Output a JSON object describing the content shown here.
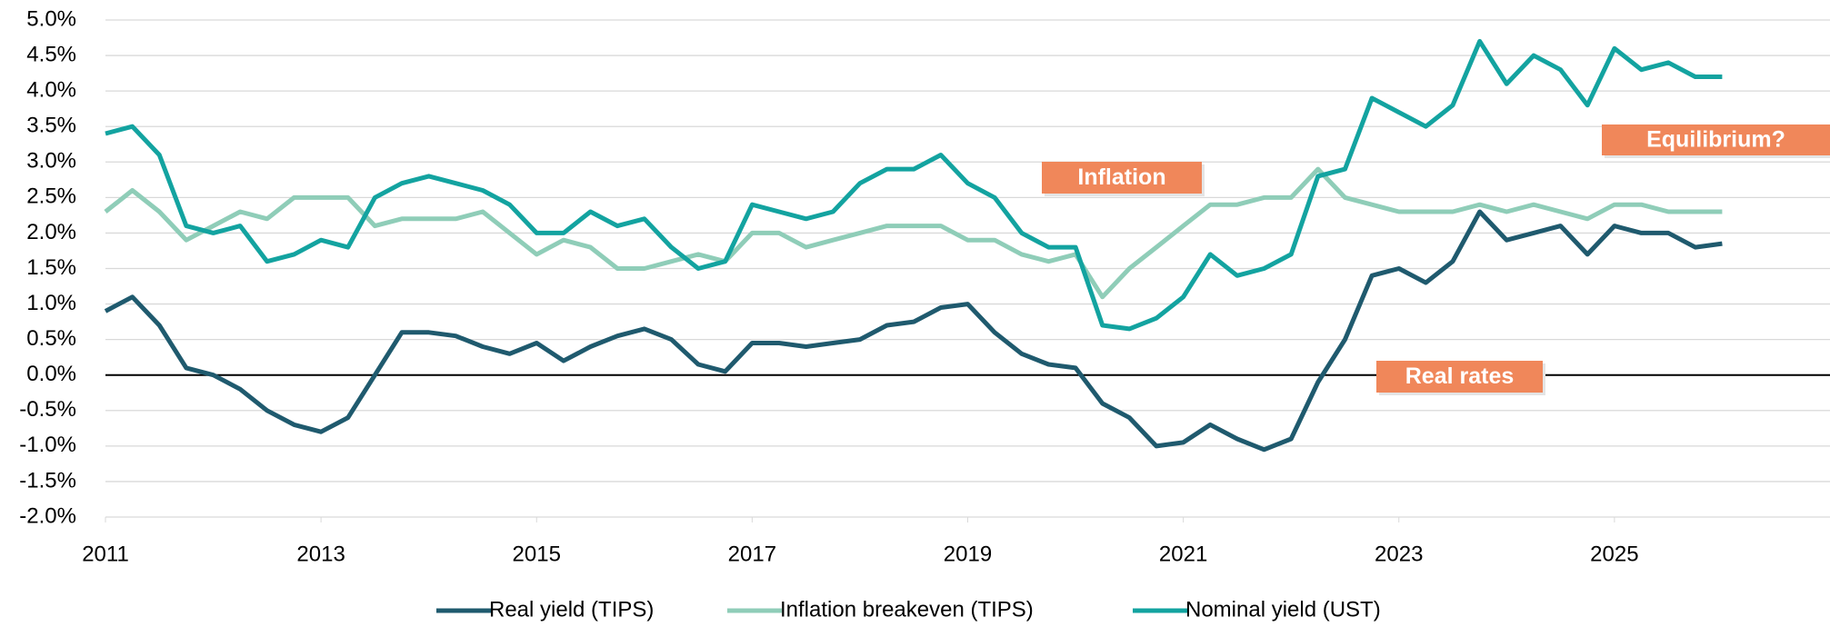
{
  "chart_data": {
    "type": "line",
    "x": [
      2011,
      2011.25,
      2011.5,
      2011.75,
      2012,
      2012.25,
      2012.5,
      2012.75,
      2013,
      2013.25,
      2013.5,
      2013.75,
      2014,
      2014.25,
      2014.5,
      2014.75,
      2015,
      2015.25,
      2015.5,
      2015.75,
      2016,
      2016.25,
      2016.5,
      2016.75,
      2017,
      2017.25,
      2017.5,
      2017.75,
      2018,
      2018.25,
      2018.5,
      2018.75,
      2019,
      2019.25,
      2019.5,
      2019.75,
      2020,
      2020.25,
      2020.5,
      2020.75,
      2021,
      2021.25,
      2021.5,
      2021.75,
      2022,
      2022.25,
      2022.5,
      2022.75,
      2023,
      2023.25,
      2023.5,
      2023.75,
      2024,
      2024.25,
      2024.5,
      2024.75,
      2025,
      2025.25,
      2025.5,
      2025.75,
      2026
    ],
    "series": [
      {
        "name": "Real yield (TIPS)",
        "color": "#1f5a6e",
        "values": [
          0.9,
          1.1,
          0.7,
          0.1,
          0.0,
          -0.2,
          -0.5,
          -0.7,
          -0.8,
          -0.6,
          0.0,
          0.6,
          0.6,
          0.55,
          0.4,
          0.3,
          0.45,
          0.2,
          0.4,
          0.55,
          0.65,
          0.5,
          0.15,
          0.05,
          0.45,
          0.45,
          0.4,
          0.45,
          0.5,
          0.7,
          0.75,
          0.95,
          1.0,
          0.6,
          0.3,
          0.15,
          0.1,
          -0.4,
          -0.6,
          -1.0,
          -0.95,
          -0.7,
          -0.9,
          -1.05,
          -0.9,
          -0.1,
          0.5,
          1.4,
          1.5,
          1.3,
          1.6,
          2.3,
          1.9,
          2.0,
          2.1,
          1.7,
          2.1,
          2.0,
          2.0,
          1.8,
          1.85
        ]
      },
      {
        "name": "Inflation breakeven (TIPS)",
        "color": "#8fcdb8",
        "values": [
          2.3,
          2.6,
          2.3,
          1.9,
          2.1,
          2.3,
          2.2,
          2.5,
          2.5,
          2.5,
          2.1,
          2.2,
          2.2,
          2.2,
          2.3,
          2.0,
          1.7,
          1.9,
          1.8,
          1.5,
          1.5,
          1.6,
          1.7,
          1.6,
          2.0,
          2.0,
          1.8,
          1.9,
          2.0,
          2.1,
          2.1,
          2.1,
          1.9,
          1.9,
          1.7,
          1.6,
          1.7,
          1.1,
          1.5,
          1.8,
          2.1,
          2.4,
          2.4,
          2.5,
          2.5,
          2.9,
          2.5,
          2.4,
          2.3,
          2.3,
          2.3,
          2.4,
          2.3,
          2.4,
          2.3,
          2.2,
          2.4,
          2.4,
          2.3,
          2.3,
          2.3
        ]
      },
      {
        "name": "Nominal yield (UST)",
        "color": "#13a3a0",
        "values": [
          3.4,
          3.5,
          3.1,
          2.1,
          2.0,
          2.1,
          1.6,
          1.7,
          1.9,
          1.8,
          2.5,
          2.7,
          2.8,
          2.7,
          2.6,
          2.4,
          2.0,
          2.0,
          2.3,
          2.1,
          2.2,
          1.8,
          1.5,
          1.6,
          2.4,
          2.3,
          2.2,
          2.3,
          2.7,
          2.9,
          2.9,
          3.1,
          2.7,
          2.5,
          2.0,
          1.8,
          1.8,
          0.7,
          0.65,
          0.8,
          1.1,
          1.7,
          1.4,
          1.5,
          1.7,
          2.8,
          2.9,
          3.9,
          3.7,
          3.5,
          3.8,
          4.7,
          4.1,
          4.5,
          4.3,
          3.8,
          4.6,
          4.3,
          4.4,
          4.2,
          4.2
        ]
      }
    ],
    "xlim": [
      2011,
      2027
    ],
    "xticks": [
      2011,
      2013,
      2015,
      2017,
      2019,
      2021,
      2023,
      2025
    ],
    "ylim": [
      -2,
      5
    ],
    "yticks": [
      {
        "value": -2,
        "label": "-2.0%"
      },
      {
        "value": -1.5,
        "label": "-1.5%"
      },
      {
        "value": -1,
        "label": "-1.0%"
      },
      {
        "value": -0.5,
        "label": "-0.5%"
      },
      {
        "value": 0,
        "label": "0.0%"
      },
      {
        "value": 0.5,
        "label": "0.5%"
      },
      {
        "value": 1,
        "label": "1.0%"
      },
      {
        "value": 1.5,
        "label": "1.5%"
      },
      {
        "value": 2,
        "label": "2.0%"
      },
      {
        "value": 2.5,
        "label": "2.5%"
      },
      {
        "value": 3,
        "label": "3.0%"
      },
      {
        "value": 3.5,
        "label": "3.5%"
      },
      {
        "value": 4,
        "label": "4.0%"
      },
      {
        "value": 4.5,
        "label": "4.5%"
      },
      {
        "value": 5,
        "label": "5.0%"
      }
    ],
    "grid": true,
    "annotations": [
      "Inflation",
      "Equilibrium?",
      "Real rates"
    ],
    "annotation_color": "#f0875a",
    "legend": "bottom"
  }
}
